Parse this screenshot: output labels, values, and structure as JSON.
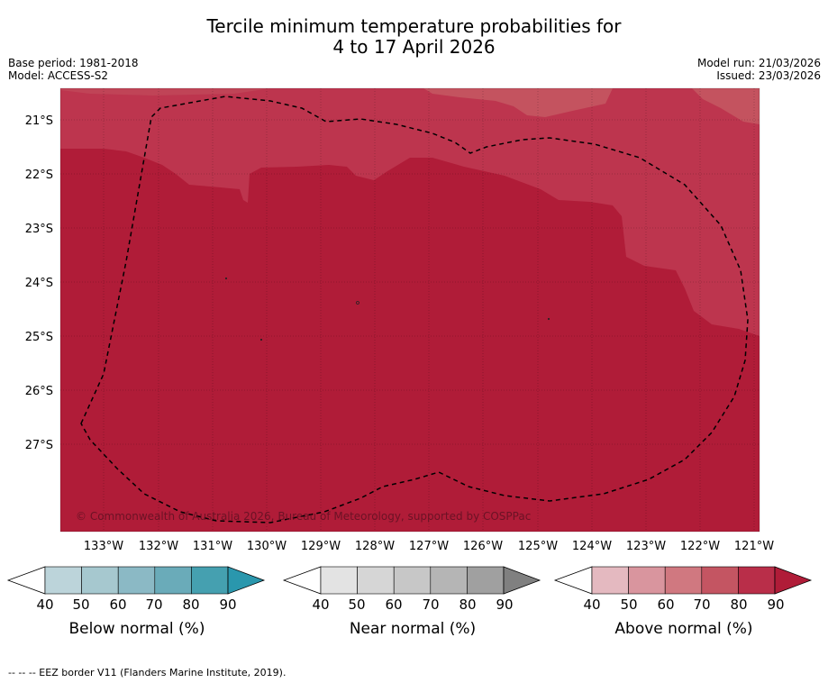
{
  "title": {
    "line1": "Tercile minimum temperature probabilities for",
    "line2": "4 to 17 April 2026"
  },
  "metadata": {
    "base_period": "Base period: 1981-2018",
    "model": "Model: ACCESS-S2",
    "model_run": "Model run: 21/03/2026",
    "issued": "Issued: 23/03/2026"
  },
  "map": {
    "copyright": "© Commonwealth of Australia 2026, Bureau of Meteorology, supported by COSPPac",
    "lat_labels": [
      "21°S",
      "22°S",
      "23°S",
      "24°S",
      "25°S",
      "26°S",
      "27°S"
    ],
    "lon_labels": [
      "133°W",
      "132°W",
      "131°W",
      "130°W",
      "129°W",
      "128°W",
      "127°W",
      "126°W",
      "125°W",
      "124°W",
      "123°W",
      "122°W",
      "121°W"
    ],
    "colors": {
      "above_90": "#b01c38",
      "above_80": "#bd354e",
      "above_70": "#c4535f"
    }
  },
  "colorbars": [
    {
      "name": "below-normal",
      "label": "Below normal (%)",
      "ticks": [
        "40",
        "50",
        "60",
        "70",
        "80",
        "90"
      ],
      "colors": [
        "#bcd4da",
        "#a6c8cf",
        "#8bb9c5",
        "#6aabb9",
        "#45a0b0",
        "#2a97ad"
      ]
    },
    {
      "name": "near-normal",
      "label": "Near normal (%)",
      "ticks": [
        "40",
        "50",
        "60",
        "70",
        "80",
        "90"
      ],
      "colors": [
        "#e3e3e3",
        "#d6d6d6",
        "#c7c7c7",
        "#b5b5b5",
        "#a0a0a0",
        "#808080"
      ]
    },
    {
      "name": "above-normal",
      "label": "Above normal (%)",
      "ticks": [
        "40",
        "50",
        "60",
        "70",
        "80",
        "90"
      ],
      "colors": [
        "#e4b9c0",
        "#d9959e",
        "#d07880",
        "#c45562",
        "#b92e49",
        "#b01c38"
      ]
    }
  ],
  "footer": "--  --  -- EEZ border V11 (Flanders Marine Institute, 2019)."
}
